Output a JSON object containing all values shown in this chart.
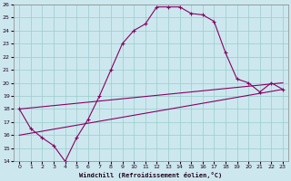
{
  "xlabel": "Windchill (Refroidissement éolien,°C)",
  "bg_color": "#cce8ee",
  "line_color": "#880066",
  "grid_color": "#99cccc",
  "xlim": [
    -0.5,
    23.5
  ],
  "ylim": [
    14,
    26
  ],
  "xticks": [
    0,
    1,
    2,
    3,
    4,
    5,
    6,
    7,
    8,
    9,
    10,
    11,
    12,
    13,
    14,
    15,
    16,
    17,
    18,
    19,
    20,
    21,
    22,
    23
  ],
  "yticks": [
    14,
    15,
    16,
    17,
    18,
    19,
    20,
    21,
    22,
    23,
    24,
    25,
    26
  ],
  "line1_x": [
    0,
    1,
    2,
    3,
    4,
    5,
    6,
    7,
    8,
    9,
    10,
    11,
    12,
    13,
    14,
    15,
    16,
    17,
    18,
    19,
    20,
    21,
    22,
    23
  ],
  "line1_y": [
    18.0,
    16.5,
    15.8,
    15.2,
    14.0,
    15.8,
    17.2,
    19.0,
    21.0,
    23.0,
    24.0,
    24.5,
    25.8,
    25.8,
    25.8,
    25.3,
    25.2,
    24.7,
    22.3,
    20.3,
    20.0,
    19.3,
    20.0,
    19.5
  ],
  "line2_x": [
    0,
    23
  ],
  "line2_y": [
    18.0,
    20.0
  ],
  "line3_x": [
    0,
    23
  ],
  "line3_y": [
    16.0,
    19.5
  ]
}
